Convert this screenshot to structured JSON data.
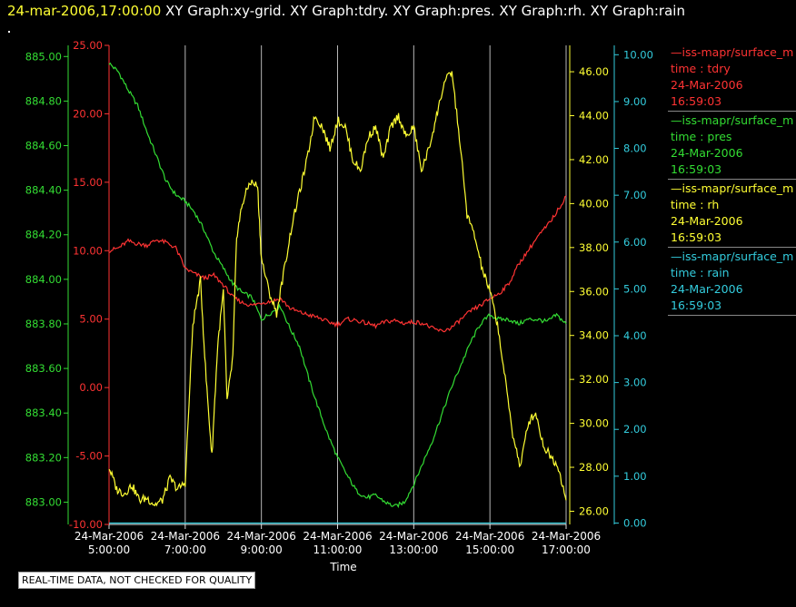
{
  "header": {
    "timestamp": "24-mar-2006,17:00:00",
    "graphs": "XY Graph:xy-grid.  XY Graph:tdry.  XY Graph:pres.  XY Graph:rh.  XY Graph:rain"
  },
  "quality_note": "REAL-TIME DATA, NOT CHECKED FOR QUALITY",
  "legend": [
    {
      "name": "—iss-mapr/surface_m",
      "var": "time : tdry",
      "date": "24-Mar-2006",
      "time": "16:59:03",
      "color": "#ff3333"
    },
    {
      "name": "—iss-mapr/surface_m",
      "var": "time : pres",
      "date": "24-Mar-2006",
      "time": "16:59:03",
      "color": "#33dd33"
    },
    {
      "name": "—iss-mapr/surface_m",
      "var": "time : rh",
      "date": "24-Mar-2006",
      "time": "16:59:03",
      "color": "#ffff33"
    },
    {
      "name": "—iss-mapr/surface_m",
      "var": "time : rain",
      "date": "24-Mar-2006",
      "time": "16:59:03",
      "color": "#33ccdd"
    }
  ],
  "chart_data": {
    "type": "line",
    "xlabel": "Time",
    "x_ticks": [
      {
        "date": "24-Mar-2006",
        "time": "5:00:00"
      },
      {
        "date": "24-Mar-2006",
        "time": "7:00:00"
      },
      {
        "date": "24-Mar-2006",
        "time": "9:00:00"
      },
      {
        "date": "24-Mar-2006",
        "time": "11:00:00"
      },
      {
        "date": "24-Mar-2006",
        "time": "13:00:00"
      },
      {
        "date": "24-Mar-2006",
        "time": "15:00:00"
      },
      {
        "date": "24-Mar-2006",
        "time": "17:00:00"
      }
    ],
    "x_unit": "hour",
    "xlim": [
      5,
      17
    ],
    "grid": "vertical",
    "axes": {
      "pres": {
        "ylim": [
          882.9,
          885.05
        ],
        "ticks": [
          "883.00",
          "883.20",
          "883.40",
          "883.60",
          "883.80",
          "884.00",
          "884.20",
          "884.40",
          "884.60",
          "884.80",
          "885.00"
        ],
        "color": "#33dd33"
      },
      "tdry": {
        "ylim": [
          -10,
          25
        ],
        "ticks": [
          "-10.00",
          "-5.00",
          "0.00",
          "5.00",
          "10.00",
          "15.00",
          "20.00",
          "25.00"
        ],
        "color": "#ff3333"
      },
      "rh": {
        "ylim": [
          25.4,
          47.2
        ],
        "ticks": [
          "26.00",
          "28.00",
          "30.00",
          "32.00",
          "34.00",
          "36.00",
          "38.00",
          "40.00",
          "42.00",
          "44.00",
          "46.00"
        ],
        "color": "#ffff33"
      },
      "rain": {
        "ylim": [
          -0.03,
          10.2
        ],
        "ticks": [
          "0.00",
          "1.00",
          "2.00",
          "3.00",
          "4.00",
          "5.00",
          "6.00",
          "7.00",
          "8.00",
          "9.00",
          "10.00"
        ],
        "color": "#33ccdd"
      }
    },
    "series": [
      {
        "name": "time : pres",
        "axis": "pres",
        "color": "#33dd33",
        "x": [
          5.0,
          5.25,
          5.5,
          5.75,
          6.0,
          6.25,
          6.5,
          6.75,
          7.0,
          7.25,
          7.5,
          7.75,
          8.0,
          8.25,
          8.5,
          8.75,
          9.0,
          9.25,
          9.5,
          9.75,
          10.0,
          10.25,
          10.5,
          10.75,
          11.0,
          11.25,
          11.5,
          11.75,
          12.0,
          12.25,
          12.5,
          12.75,
          13.0,
          13.25,
          13.5,
          13.75,
          14.0,
          14.25,
          14.5,
          14.75,
          15.0,
          15.25,
          15.5,
          15.75,
          16.0,
          16.25,
          16.5,
          16.75,
          17.0
        ],
        "y": [
          884.97,
          884.93,
          884.85,
          884.78,
          884.66,
          884.55,
          884.44,
          884.38,
          884.35,
          884.3,
          884.22,
          884.12,
          884.05,
          883.98,
          883.94,
          883.92,
          883.82,
          883.85,
          883.88,
          883.78,
          883.7,
          883.55,
          883.42,
          883.3,
          883.2,
          883.12,
          883.05,
          883.02,
          883.03,
          883.0,
          882.98,
          883.0,
          883.08,
          883.18,
          883.28,
          883.4,
          883.52,
          883.62,
          883.72,
          883.8,
          883.84,
          883.82,
          883.82,
          883.8,
          883.82,
          883.82,
          883.81,
          883.84,
          883.8
        ]
      },
      {
        "name": "time : tdry",
        "axis": "tdry",
        "color": "#ff3333",
        "x": [
          5.0,
          5.25,
          5.5,
          5.75,
          6.0,
          6.25,
          6.5,
          6.75,
          7.0,
          7.25,
          7.5,
          7.75,
          8.0,
          8.25,
          8.5,
          8.75,
          9.0,
          9.25,
          9.5,
          9.75,
          10.0,
          10.25,
          10.5,
          10.75,
          11.0,
          11.25,
          11.5,
          11.75,
          12.0,
          12.25,
          12.5,
          12.75,
          13.0,
          13.25,
          13.5,
          13.75,
          14.0,
          14.25,
          14.5,
          14.75,
          15.0,
          15.25,
          15.5,
          15.75,
          16.0,
          16.25,
          16.5,
          16.75,
          17.0
        ],
        "y": [
          10.0,
          10.2,
          10.7,
          10.5,
          10.4,
          10.8,
          10.6,
          10.2,
          8.7,
          8.3,
          8.0,
          8.2,
          7.5,
          6.6,
          6.2,
          6.0,
          6.2,
          6.3,
          6.5,
          5.8,
          5.5,
          5.3,
          5.1,
          4.8,
          4.6,
          5.0,
          4.9,
          4.7,
          4.5,
          4.8,
          4.9,
          4.7,
          4.8,
          4.7,
          4.3,
          4.1,
          4.4,
          5.0,
          5.6,
          6.0,
          6.5,
          6.9,
          7.6,
          9.0,
          10.0,
          11.0,
          11.8,
          12.8,
          14.0
        ]
      },
      {
        "name": "time : rh",
        "axis": "rh",
        "color": "#ffff33",
        "x": [
          5.0,
          5.2,
          5.4,
          5.6,
          5.8,
          6.0,
          6.2,
          6.4,
          6.6,
          6.8,
          7.0,
          7.2,
          7.4,
          7.55,
          7.7,
          7.85,
          8.0,
          8.1,
          8.25,
          8.35,
          8.5,
          8.7,
          8.9,
          9.0,
          9.2,
          9.4,
          9.6,
          9.8,
          10.0,
          10.2,
          10.4,
          10.6,
          10.8,
          11.0,
          11.2,
          11.4,
          11.6,
          11.8,
          12.0,
          12.2,
          12.4,
          12.6,
          12.8,
          13.0,
          13.2,
          13.4,
          13.6,
          13.8,
          14.0,
          14.2,
          14.4,
          14.6,
          14.8,
          15.0,
          15.2,
          15.4,
          15.6,
          15.8,
          16.0,
          16.2,
          16.4,
          16.6,
          16.8,
          17.0
        ],
        "y": [
          28.0,
          27.0,
          26.8,
          27.2,
          26.5,
          26.6,
          26.3,
          26.5,
          27.5,
          27.0,
          27.3,
          34.5,
          36.5,
          32.0,
          28.5,
          33.5,
          36.0,
          31.0,
          33.0,
          38.5,
          40.0,
          41.0,
          40.8,
          37.5,
          36.0,
          35.0,
          37.0,
          39.0,
          40.5,
          42.0,
          44.0,
          43.5,
          42.5,
          43.8,
          43.5,
          42.0,
          41.5,
          43.0,
          43.5,
          42.0,
          43.5,
          44.0,
          43.0,
          43.5,
          41.5,
          42.5,
          44.0,
          45.5,
          46.0,
          43.0,
          39.5,
          38.5,
          37.0,
          36.0,
          34.5,
          32.0,
          29.5,
          28.0,
          30.0,
          30.5,
          29.0,
          28.5,
          28.0,
          26.5
        ]
      },
      {
        "name": "time : rain",
        "axis": "rain",
        "color": "#33ccdd",
        "x": [
          5.0,
          17.0
        ],
        "y": [
          0.0,
          0.0
        ]
      }
    ]
  }
}
